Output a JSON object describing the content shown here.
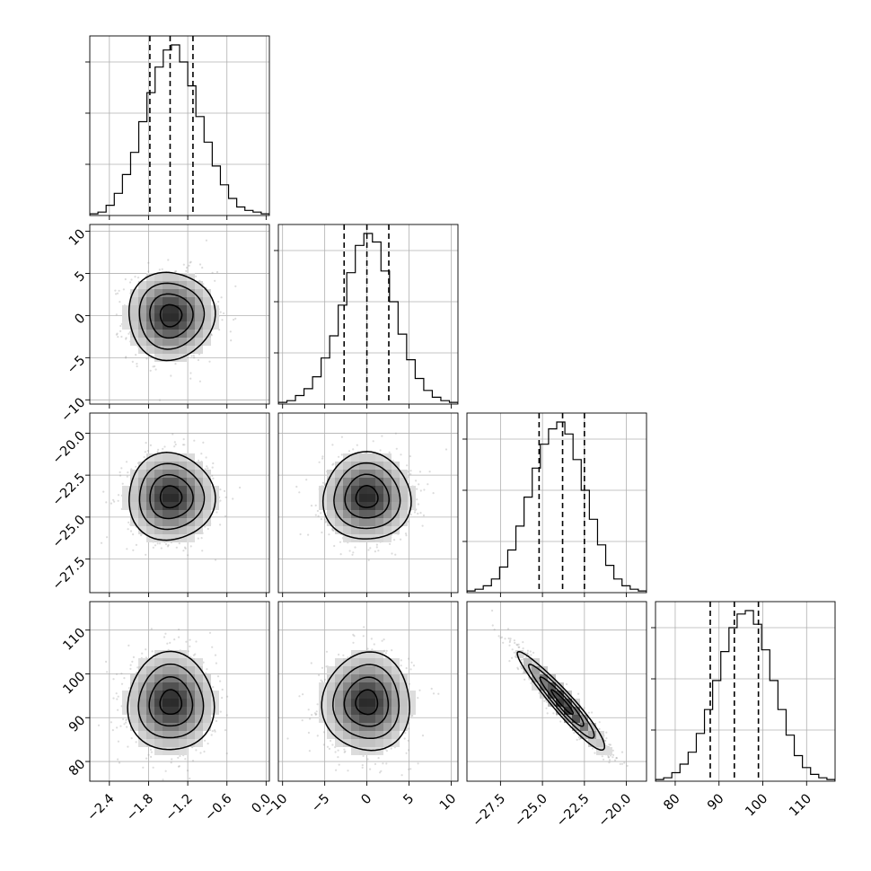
{
  "chart_data": {
    "type": "scatter",
    "description_kind": "corner",
    "parameters": [
      {
        "index": 0,
        "range": [
          -2.7,
          0.05
        ],
        "ticks": [
          -2.4,
          -1.8,
          -1.2,
          -0.6,
          0.0
        ],
        "tick_labels": [
          "−2.4",
          "−1.8",
          "−1.2",
          "−0.6",
          "0.0"
        ],
        "quantiles": [
          -1.78,
          -1.47,
          -1.12
        ],
        "hist_heights": [
          0.01,
          0.02,
          0.06,
          0.13,
          0.24,
          0.37,
          0.55,
          0.72,
          0.87,
          0.97,
          1.0,
          0.9,
          0.76,
          0.58,
          0.43,
          0.29,
          0.18,
          0.1,
          0.05,
          0.03,
          0.02,
          0.01
        ]
      },
      {
        "index": 1,
        "range": [
          -10.5,
          10.8
        ],
        "ticks": [
          -10,
          -5,
          0,
          5,
          10
        ],
        "tick_labels": [
          "−10",
          "−5",
          "0",
          "5",
          "10"
        ],
        "quantiles": [
          -2.7,
          0.0,
          2.6
        ],
        "hist_heights": [
          0.01,
          0.02,
          0.05,
          0.09,
          0.16,
          0.27,
          0.4,
          0.58,
          0.77,
          0.93,
          1.0,
          0.95,
          0.78,
          0.6,
          0.41,
          0.26,
          0.15,
          0.08,
          0.04,
          0.02,
          0.01
        ]
      },
      {
        "index": 2,
        "range": [
          -29.5,
          -18.8
        ],
        "ticks": [
          -27.5,
          -25.0,
          -22.5,
          -20.0
        ],
        "tick_labels": [
          "−27.5",
          "−25.0",
          "−22.5",
          "−20.0"
        ],
        "quantiles": [
          -25.2,
          -23.8,
          -22.5
        ],
        "hist_heights": [
          0.01,
          0.02,
          0.04,
          0.08,
          0.15,
          0.25,
          0.39,
          0.56,
          0.73,
          0.87,
          0.96,
          1.0,
          0.93,
          0.78,
          0.6,
          0.43,
          0.28,
          0.16,
          0.08,
          0.04,
          0.02,
          0.01
        ]
      },
      {
        "index": 3,
        "range": [
          75.5,
          116.5
        ],
        "ticks": [
          80,
          90,
          100,
          110
        ],
        "tick_labels": [
          "80",
          "90",
          "100",
          "110"
        ],
        "quantiles": [
          88,
          93.5,
          99
        ],
        "hist_heights": [
          0.01,
          0.02,
          0.05,
          0.1,
          0.17,
          0.28,
          0.42,
          0.59,
          0.76,
          0.9,
          0.98,
          1.0,
          0.92,
          0.77,
          0.59,
          0.42,
          0.27,
          0.15,
          0.08,
          0.04,
          0.02,
          0.01
        ]
      }
    ],
    "pairs": [
      {
        "row": 1,
        "col": 0,
        "mean": [
          -1.46,
          0.0
        ],
        "sd": [
          0.33,
          2.6
        ],
        "corr": 0.0
      },
      {
        "row": 2,
        "col": 0,
        "mean": [
          -1.46,
          -23.8
        ],
        "sd": [
          0.33,
          1.3
        ],
        "corr": 0.0
      },
      {
        "row": 2,
        "col": 1,
        "mean": [
          0.0,
          -23.8
        ],
        "sd": [
          2.6,
          1.3
        ],
        "corr": 0.0
      },
      {
        "row": 3,
        "col": 0,
        "mean": [
          -1.46,
          93.5
        ],
        "sd": [
          0.33,
          5.6
        ],
        "corr": 0.0
      },
      {
        "row": 3,
        "col": 1,
        "mean": [
          0.0,
          93.5
        ],
        "sd": [
          2.6,
          5.6
        ],
        "corr": 0.0
      },
      {
        "row": 3,
        "col": 2,
        "mean": [
          -23.8,
          93.5
        ],
        "sd": [
          1.3,
          5.6
        ],
        "corr": -0.95
      }
    ],
    "grid": true,
    "legend": "none"
  }
}
